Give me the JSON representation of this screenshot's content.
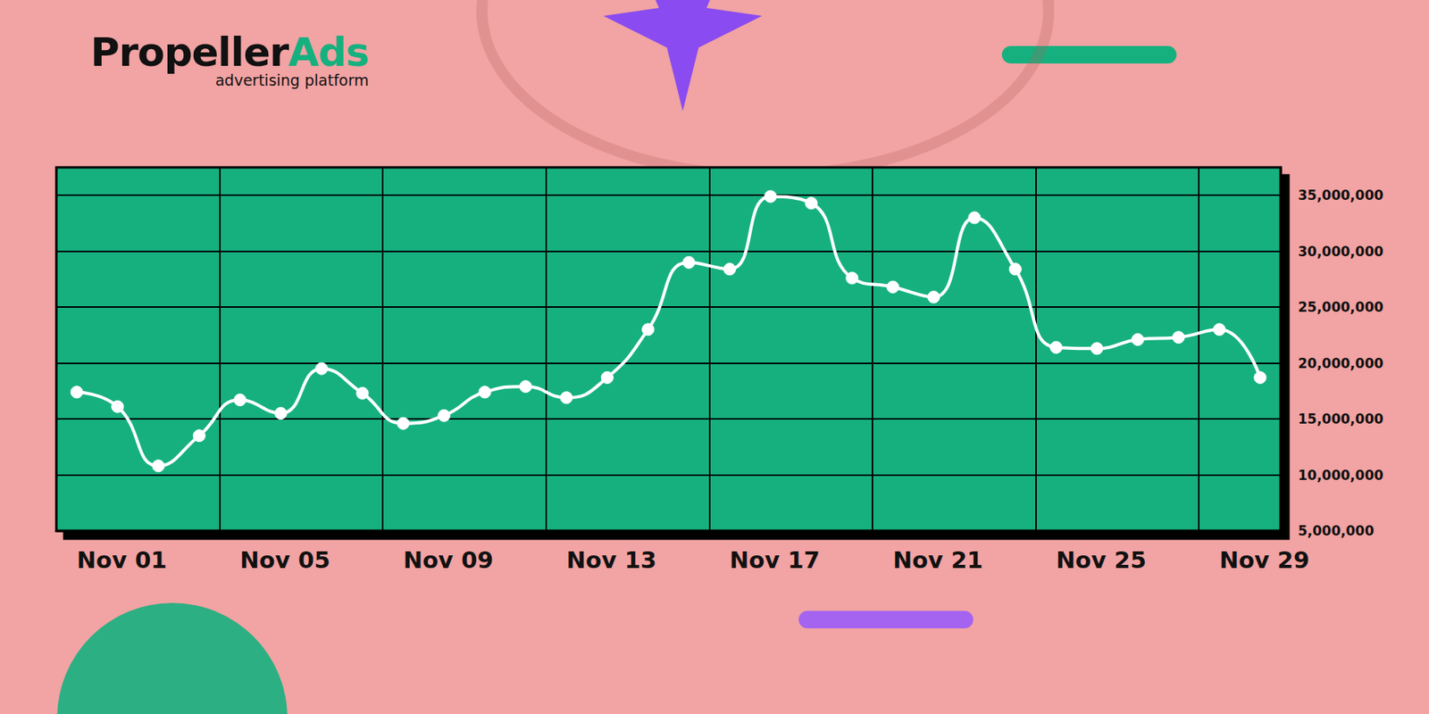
{
  "chart_data": {
    "type": "line",
    "categories": [
      "Nov 01",
      null,
      null,
      null,
      "Nov 05",
      null,
      null,
      null,
      "Nov 09",
      null,
      null,
      null,
      "Nov 13",
      null,
      null,
      null,
      "Nov 17",
      null,
      null,
      null,
      "Nov 21",
      null,
      null,
      null,
      "Nov 25",
      null,
      null,
      null,
      "Nov 29",
      null
    ],
    "values": [
      17400000,
      16100000,
      10800000,
      13500000,
      16700000,
      15500000,
      19500000,
      17300000,
      14600000,
      15300000,
      17400000,
      17900000,
      16900000,
      18700000,
      23000000,
      29000000,
      28400000,
      34900000,
      34300000,
      27600000,
      26800000,
      25900000,
      33000000,
      28400000,
      21400000,
      21300000,
      22100000,
      22300000,
      23000000,
      18700000
    ],
    "color": "#ffffff",
    "marker": "circle",
    "line_style": "solid",
    "ylim": [
      5000000,
      37500000
    ],
    "yticks": [
      {
        "value": 5000000,
        "label": "5,000,000"
      },
      {
        "value": 10000000,
        "label": "10,000,000"
      },
      {
        "value": 15000000,
        "label": "15,000,000"
      },
      {
        "value": 20000000,
        "label": "20,000,000"
      },
      {
        "value": 25000000,
        "label": "25,000,000"
      },
      {
        "value": 30000000,
        "label": "30,000,000"
      },
      {
        "value": 35000000,
        "label": "35,000,000"
      }
    ],
    "grid": true
  },
  "logo": {
    "name": [
      "Propeller",
      "Ads"
    ],
    "tagline": "advertising platform"
  }
}
